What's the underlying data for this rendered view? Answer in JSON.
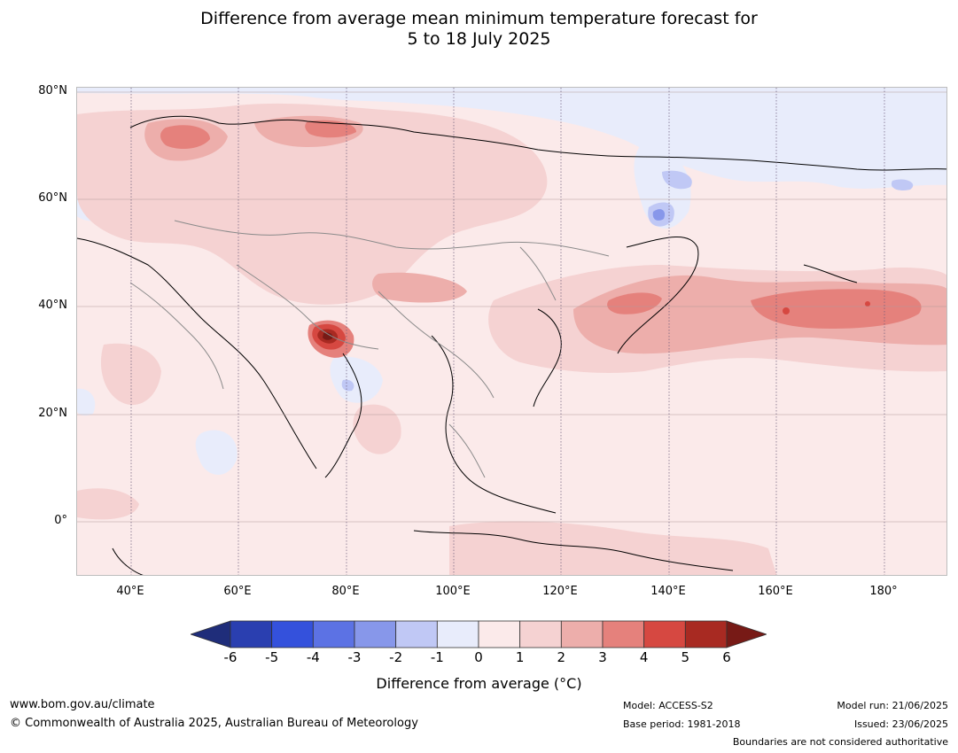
{
  "title": {
    "line1": "Difference from average mean minimum temperature forecast for",
    "line2": "5 to 18 July 2025"
  },
  "axes": {
    "lat_labels": [
      "80°N",
      "60°N",
      "40°N",
      "20°N",
      "0°"
    ],
    "lon_labels": [
      "40°E",
      "60°E",
      "80°E",
      "100°E",
      "120°E",
      "140°E",
      "160°E",
      "180°"
    ]
  },
  "legend": {
    "title": "Difference from average (°C)",
    "ticks": [
      "-6",
      "-5",
      "-4",
      "-3",
      "-2",
      "-1",
      "0",
      "1",
      "2",
      "3",
      "4",
      "5",
      "6"
    ],
    "colors": [
      "#1f2d7a",
      "#2a3fb0",
      "#3451dc",
      "#5c72e4",
      "#8797ea",
      "#c0c8f5",
      "#e8ecfb",
      "#fbeaea",
      "#f5d2d2",
      "#edaeab",
      "#e5817c",
      "#d64841",
      "#a82a22",
      "#771a16"
    ]
  },
  "footer": {
    "website": "www.bom.gov.au/climate",
    "copyright": "© Commonwealth of Australia 2025, Australian Bureau of Meteorology",
    "model": "Model: ACCESS-S2",
    "base_period": "Base period: 1981-2018",
    "model_run": "Model run: 21/06/2025",
    "issued": "Issued: 23/06/2025",
    "disclaimer": "Boundaries are not considered authoritative"
  }
}
